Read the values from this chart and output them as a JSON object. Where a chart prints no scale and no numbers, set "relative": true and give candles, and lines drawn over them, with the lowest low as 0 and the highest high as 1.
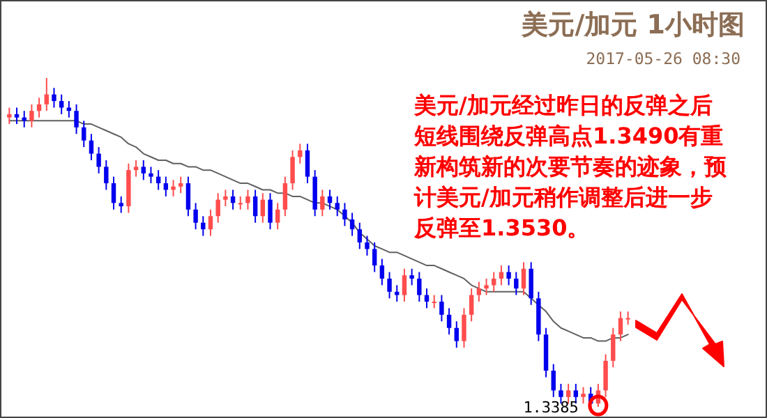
{
  "chart_data": {
    "type": "candlestick",
    "title": "美元/加元 1小时图",
    "subtitle": "2017-05-26 08:30",
    "relative": true,
    "categories": [
      null,
      null,
      null,
      null,
      null,
      null,
      null,
      null,
      null,
      null,
      null,
      null,
      null,
      null,
      null,
      null,
      null,
      null,
      null,
      null,
      null,
      null,
      null,
      null,
      null,
      null,
      null,
      null,
      null,
      null,
      null,
      null,
      null,
      null,
      null,
      null,
      null,
      null,
      null,
      null,
      null,
      null,
      null,
      null,
      null,
      null,
      null,
      null,
      null,
      null,
      null,
      null,
      null,
      null,
      null,
      null,
      null,
      null,
      null,
      null,
      null,
      null,
      null,
      null,
      null,
      null,
      null,
      null,
      null,
      null,
      null,
      null,
      null,
      null,
      null,
      null,
      null,
      null,
      null,
      null,
      null,
      null,
      null,
      null
    ],
    "ohlc": [
      [
        0.88,
        0.91,
        0.86,
        0.89
      ],
      [
        0.89,
        0.91,
        0.86,
        0.88
      ],
      [
        0.88,
        0.9,
        0.85,
        0.87
      ],
      [
        0.87,
        0.92,
        0.85,
        0.9
      ],
      [
        0.9,
        0.94,
        0.88,
        0.92
      ],
      [
        0.92,
        1.0,
        0.9,
        0.95
      ],
      [
        0.95,
        0.97,
        0.91,
        0.93
      ],
      [
        0.93,
        0.95,
        0.89,
        0.91
      ],
      [
        0.91,
        0.93,
        0.88,
        0.9
      ],
      [
        0.9,
        0.92,
        0.83,
        0.85
      ],
      [
        0.85,
        0.87,
        0.79,
        0.81
      ],
      [
        0.81,
        0.83,
        0.75,
        0.77
      ],
      [
        0.77,
        0.79,
        0.71,
        0.73
      ],
      [
        0.73,
        0.75,
        0.66,
        0.68
      ],
      [
        0.68,
        0.7,
        0.6,
        0.62
      ],
      [
        0.62,
        0.64,
        0.59,
        0.61
      ],
      [
        0.61,
        0.74,
        0.59,
        0.72
      ],
      [
        0.72,
        0.75,
        0.7,
        0.73
      ],
      [
        0.73,
        0.75,
        0.69,
        0.71
      ],
      [
        0.71,
        0.73,
        0.68,
        0.7
      ],
      [
        0.7,
        0.72,
        0.66,
        0.68
      ],
      [
        0.68,
        0.7,
        0.64,
        0.66
      ],
      [
        0.66,
        0.69,
        0.64,
        0.67
      ],
      [
        0.67,
        0.7,
        0.65,
        0.68
      ],
      [
        0.68,
        0.7,
        0.58,
        0.6
      ],
      [
        0.6,
        0.62,
        0.54,
        0.56
      ],
      [
        0.56,
        0.58,
        0.52,
        0.54
      ],
      [
        0.54,
        0.6,
        0.52,
        0.58
      ],
      [
        0.58,
        0.65,
        0.56,
        0.63
      ],
      [
        0.63,
        0.66,
        0.61,
        0.64
      ],
      [
        0.64,
        0.66,
        0.6,
        0.62
      ],
      [
        0.62,
        0.64,
        0.6,
        0.62
      ],
      [
        0.62,
        0.66,
        0.6,
        0.64
      ],
      [
        0.64,
        0.66,
        0.56,
        0.58
      ],
      [
        0.58,
        0.65,
        0.56,
        0.63
      ],
      [
        0.63,
        0.65,
        0.54,
        0.56
      ],
      [
        0.56,
        0.62,
        0.54,
        0.6
      ],
      [
        0.6,
        0.7,
        0.58,
        0.68
      ],
      [
        0.68,
        0.78,
        0.66,
        0.76
      ],
      [
        0.76,
        0.8,
        0.74,
        0.78
      ],
      [
        0.78,
        0.8,
        0.68,
        0.7
      ],
      [
        0.7,
        0.72,
        0.58,
        0.6
      ],
      [
        0.6,
        0.66,
        0.58,
        0.64
      ],
      [
        0.64,
        0.66,
        0.6,
        0.62
      ],
      [
        0.62,
        0.64,
        0.58,
        0.6
      ],
      [
        0.6,
        0.62,
        0.55,
        0.57
      ],
      [
        0.57,
        0.59,
        0.52,
        0.54
      ],
      [
        0.54,
        0.56,
        0.48,
        0.5
      ],
      [
        0.5,
        0.52,
        0.46,
        0.48
      ],
      [
        0.48,
        0.5,
        0.41,
        0.43
      ],
      [
        0.43,
        0.45,
        0.37,
        0.39
      ],
      [
        0.39,
        0.41,
        0.33,
        0.35
      ],
      [
        0.35,
        0.37,
        0.32,
        0.34
      ],
      [
        0.34,
        0.42,
        0.32,
        0.4
      ],
      [
        0.4,
        0.42,
        0.37,
        0.39
      ],
      [
        0.39,
        0.41,
        0.32,
        0.34
      ],
      [
        0.34,
        0.36,
        0.3,
        0.32
      ],
      [
        0.32,
        0.34,
        0.3,
        0.32
      ],
      [
        0.32,
        0.34,
        0.26,
        0.28
      ],
      [
        0.28,
        0.3,
        0.22,
        0.24
      ],
      [
        0.24,
        0.26,
        0.18,
        0.2
      ],
      [
        0.2,
        0.3,
        0.18,
        0.28
      ],
      [
        0.28,
        0.36,
        0.26,
        0.34
      ],
      [
        0.34,
        0.38,
        0.32,
        0.36
      ],
      [
        0.36,
        0.39,
        0.34,
        0.37
      ],
      [
        0.37,
        0.41,
        0.35,
        0.39
      ],
      [
        0.39,
        0.43,
        0.37,
        0.41
      ],
      [
        0.41,
        0.43,
        0.37,
        0.39
      ],
      [
        0.39,
        0.41,
        0.34,
        0.36
      ],
      [
        0.36,
        0.44,
        0.34,
        0.42
      ],
      [
        0.42,
        0.44,
        0.31,
        0.33
      ],
      [
        0.33,
        0.35,
        0.2,
        0.22
      ],
      [
        0.22,
        0.24,
        0.09,
        0.11
      ],
      [
        0.11,
        0.13,
        0.03,
        0.05
      ],
      [
        0.05,
        0.07,
        0.01,
        0.03
      ],
      [
        0.03,
        0.07,
        0.01,
        0.05
      ],
      [
        0.05,
        0.07,
        0.01,
        0.03
      ],
      [
        0.03,
        0.06,
        0.01,
        0.04
      ],
      [
        0.04,
        0.06,
        0.0,
        0.01
      ],
      [
        0.01,
        0.07,
        0.0,
        0.05
      ],
      [
        0.05,
        0.16,
        0.03,
        0.14
      ],
      [
        0.14,
        0.24,
        0.12,
        0.22
      ],
      [
        0.22,
        0.29,
        0.2,
        0.27
      ],
      [
        0.27,
        0.29,
        0.25,
        0.27
      ]
    ],
    "series": [
      {
        "type": "line",
        "color": "#606060",
        "values": [
          0.87,
          0.87,
          0.87,
          0.87,
          0.87,
          0.87,
          0.87,
          0.87,
          0.87,
          0.87,
          0.86,
          0.86,
          0.85,
          0.84,
          0.83,
          0.82,
          0.8,
          0.79,
          0.77,
          0.76,
          0.75,
          0.75,
          0.74,
          0.74,
          0.73,
          0.73,
          0.72,
          0.72,
          0.71,
          0.7,
          0.69,
          0.68,
          0.68,
          0.67,
          0.66,
          0.66,
          0.65,
          0.65,
          0.64,
          0.64,
          0.63,
          0.62,
          0.62,
          0.61,
          0.6,
          0.58,
          0.56,
          0.53,
          0.51,
          0.49,
          0.48,
          0.47,
          0.47,
          0.46,
          0.45,
          0.44,
          0.43,
          0.43,
          0.42,
          0.41,
          0.4,
          0.39,
          0.37,
          0.36,
          0.35,
          0.35,
          0.35,
          0.35,
          0.35,
          0.35,
          0.33,
          0.31,
          0.29,
          0.26,
          0.24,
          0.23,
          0.22,
          0.21,
          0.21,
          0.2,
          0.2,
          0.21,
          0.21,
          0.22
        ]
      }
    ],
    "annotations": [
      "美元/加元经过昨日的反弹之后短线围绕反弹高点1.3490有重新构筑新的次要节奏的迹象，预计美元/加元稍作调整后进一步反弹至1.3530。",
      "1.3385"
    ]
  }
}
